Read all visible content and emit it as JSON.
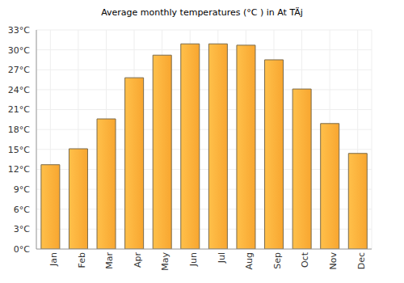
{
  "chart_data": {
    "type": "bar",
    "title": "Average monthly temperatures (°C ) in At TÄj",
    "categories": [
      "Jan",
      "Feb",
      "Mar",
      "Apr",
      "May",
      "Jun",
      "Jul",
      "Aug",
      "Sep",
      "Oct",
      "Nov",
      "Dec"
    ],
    "values": [
      12.7,
      15.1,
      19.6,
      25.8,
      29.2,
      30.9,
      30.9,
      30.7,
      28.5,
      24.1,
      18.9,
      14.4
    ],
    "color": "#f8a630",
    "ylim": [
      0,
      33
    ],
    "yticks": [
      {
        "value": 0,
        "label": "0°C"
      },
      {
        "value": 3,
        "label": "3°C"
      },
      {
        "value": 6,
        "label": "6°C"
      },
      {
        "value": 9,
        "label": "9°C"
      },
      {
        "value": 12,
        "label": "12°C"
      },
      {
        "value": 15,
        "label": "15°C"
      },
      {
        "value": 18,
        "label": "18°C"
      },
      {
        "value": 21,
        "label": "21°C"
      },
      {
        "value": 24,
        "label": "24°C"
      },
      {
        "value": 27,
        "label": "27°C"
      },
      {
        "value": 30,
        "label": "30°C"
      },
      {
        "value": 33,
        "label": "33°C"
      }
    ],
    "grid": true
  }
}
